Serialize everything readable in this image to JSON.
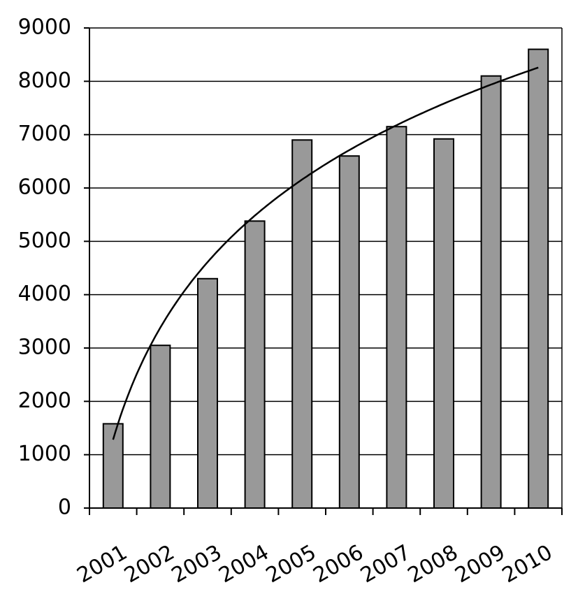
{
  "chart_data": {
    "type": "bar",
    "categories": [
      "2001",
      "2002",
      "2003",
      "2004",
      "2005",
      "2006",
      "2007",
      "2008",
      "2009",
      "2010"
    ],
    "values": [
      1580,
      3050,
      4300,
      5380,
      6900,
      6600,
      7150,
      6920,
      8100,
      8600
    ],
    "color": "#999999",
    "ylim": [
      0,
      9000
    ],
    "yticks": [
      0,
      1000,
      2000,
      3000,
      4000,
      5000,
      6000,
      7000,
      8000,
      9000
    ],
    "grid": true,
    "trendline": "logarithmic"
  }
}
